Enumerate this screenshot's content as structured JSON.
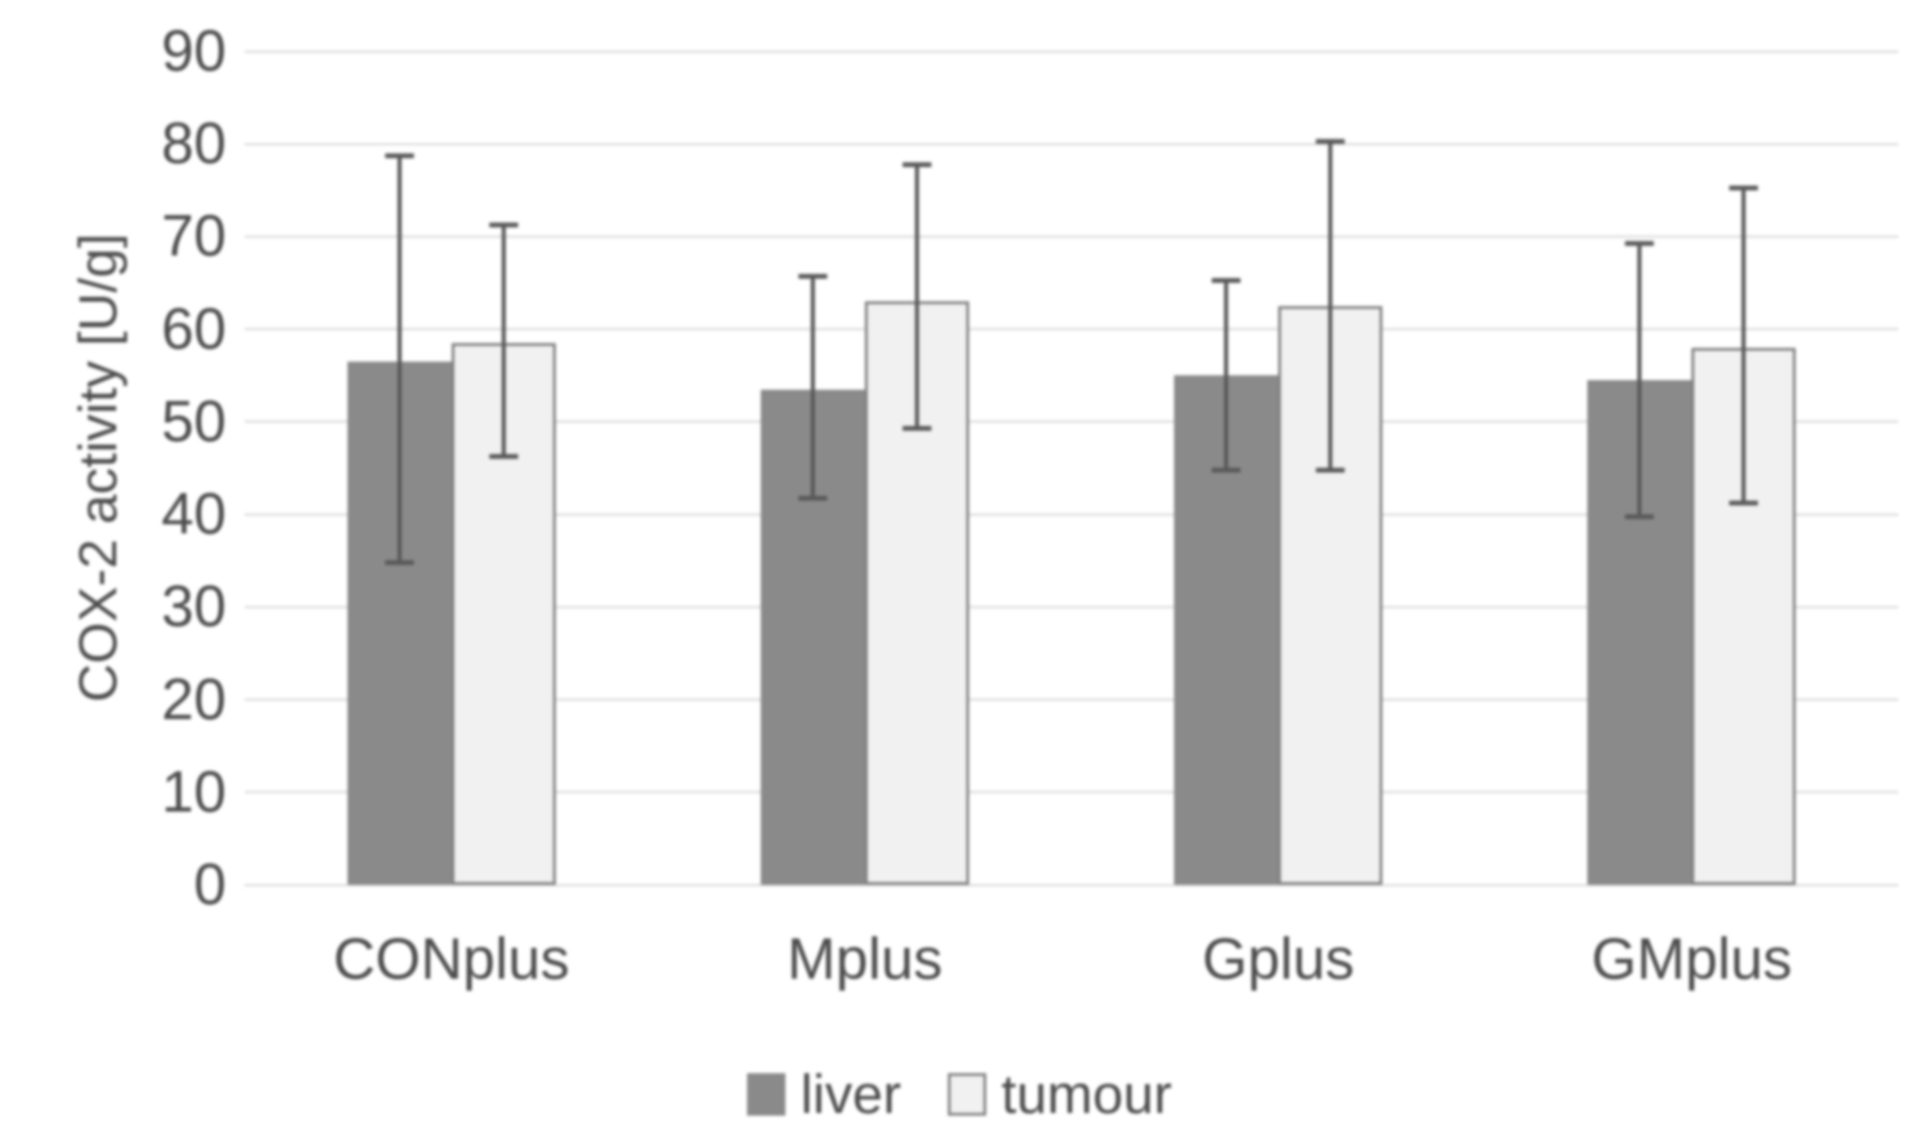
{
  "colors": {
    "background": "#ffffff",
    "liver_fill": "#8a8a8a",
    "tumour_fill": "#f1f1f1",
    "tumour_border": "#7f7f7f",
    "error_bar": "#595959",
    "gridline": "#d9d9d9",
    "text": "#4d4d4d"
  },
  "chart_data": {
    "type": "bar",
    "title": "",
    "xlabel": "",
    "ylabel": "COX-2 activity [U/g]",
    "ylim": [
      0,
      90
    ],
    "ytick_step": 10,
    "yticks": [
      0,
      10,
      20,
      30,
      40,
      50,
      60,
      70,
      80,
      90
    ],
    "grid": true,
    "legend_position": "bottom-center",
    "categories": [
      "CONplus",
      "Mplus",
      "Gplus",
      "GMplus"
    ],
    "series": [
      {
        "name": "liver",
        "values": [
          56.5,
          53.5,
          55,
          54.5
        ],
        "error_low": [
          34.5,
          41.5,
          44.5,
          39.5
        ],
        "error_high": [
          79,
          66,
          65.5,
          69.5
        ]
      },
      {
        "name": "tumour",
        "values": [
          58.5,
          63,
          62.5,
          58
        ],
        "error_low": [
          46,
          49,
          44.5,
          41
        ],
        "error_high": [
          71.5,
          78,
          80.5,
          75.5
        ]
      }
    ]
  }
}
